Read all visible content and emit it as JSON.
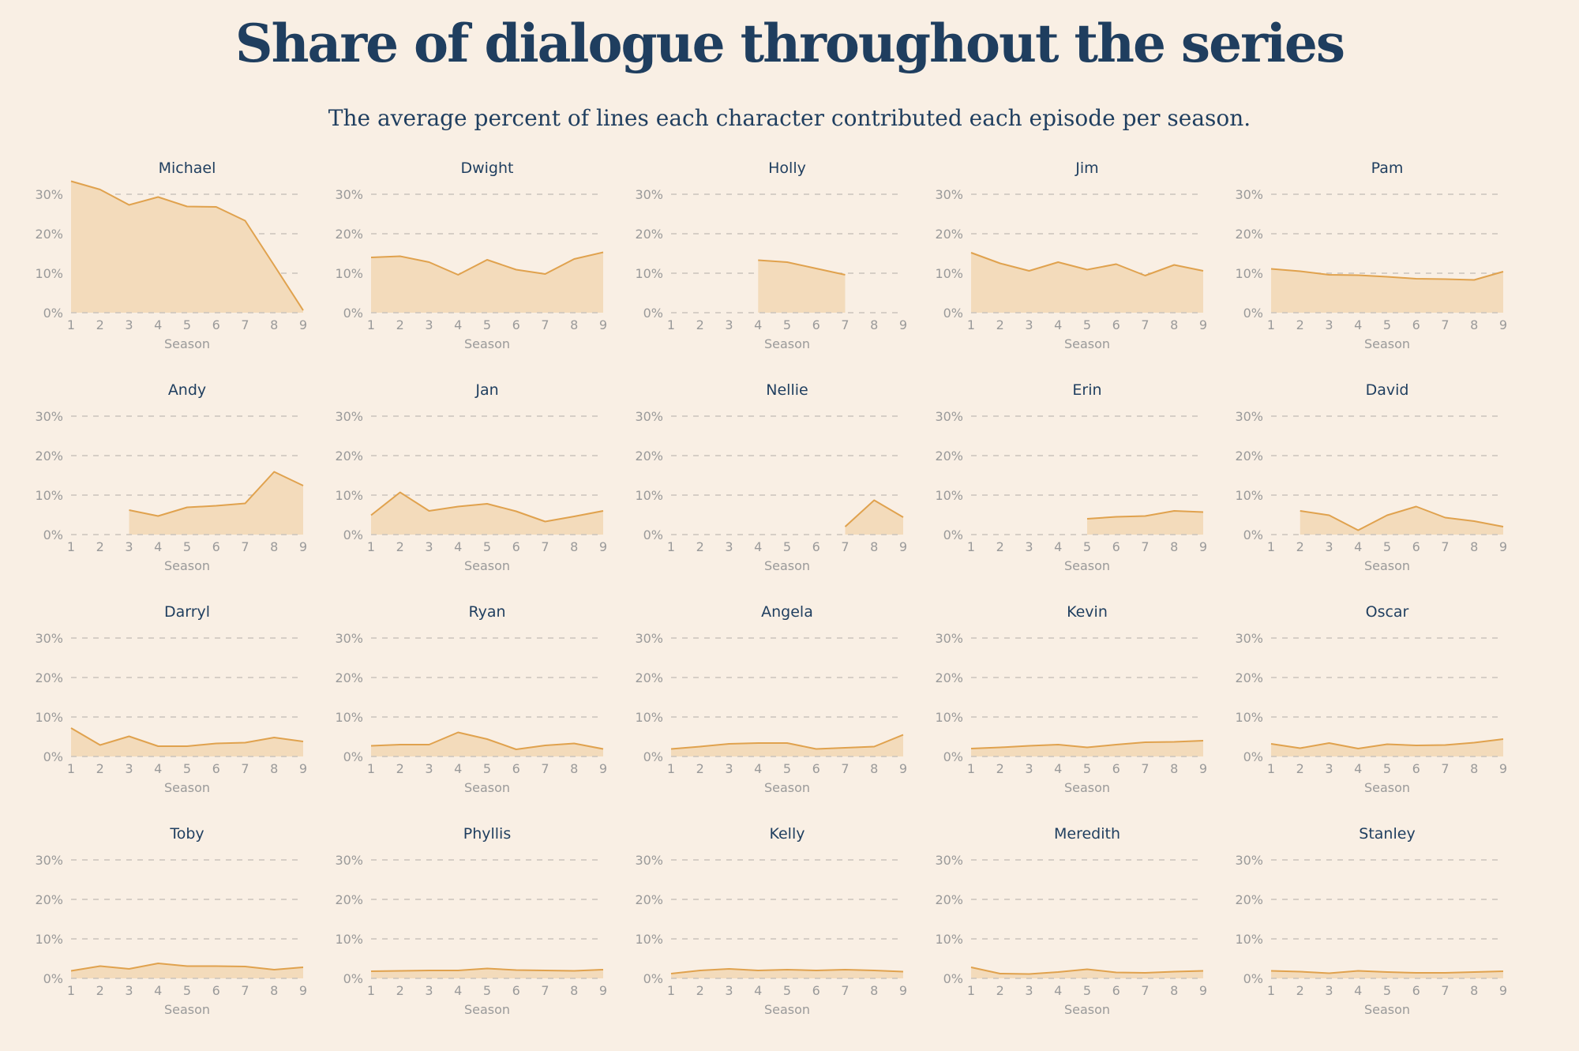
{
  "title": "Share of dialogue throughout the series",
  "subtitle": "The average percent of lines each character contributed each episode per season.",
  "colors": {
    "background": "#f9efe4",
    "area_fill": "#f3dbbb",
    "line": "#e0a24e",
    "grid": "#cbc4bc",
    "axis_text": "#9a9a9a",
    "title_text": "#1f3e5f"
  },
  "chart_data": {
    "type": "area",
    "layout": "small-multiples grid, 5 columns x 4 rows",
    "x": [
      1,
      2,
      3,
      4,
      5,
      6,
      7,
      8,
      9
    ],
    "x_tick_labels": [
      "1",
      "2",
      "3",
      "4",
      "5",
      "6",
      "7",
      "8",
      "9"
    ],
    "y_ticks": [
      0,
      10,
      20,
      30
    ],
    "y_tick_labels": [
      "0%",
      "10%",
      "20%",
      "30%"
    ],
    "xlabel": "Season",
    "ylim": [
      0,
      30
    ],
    "grid": "horizontal dashed",
    "series": [
      {
        "name": "Michael",
        "values": [
          33.3,
          31.2,
          27.3,
          29.3,
          26.9,
          26.8,
          23.3,
          12.0,
          0.6
        ]
      },
      {
        "name": "Dwight",
        "values": [
          14.0,
          14.3,
          12.8,
          9.6,
          13.4,
          10.9,
          9.8,
          13.6,
          15.3
        ]
      },
      {
        "name": "Holly",
        "values": [
          null,
          null,
          null,
          13.3,
          12.8,
          11.2,
          9.6,
          null,
          null
        ]
      },
      {
        "name": "Jim",
        "values": [
          15.2,
          12.5,
          10.6,
          12.8,
          10.9,
          12.3,
          9.4,
          12.1,
          10.6
        ]
      },
      {
        "name": "Pam",
        "values": [
          11.1,
          10.5,
          9.6,
          9.5,
          9.1,
          8.6,
          8.5,
          8.3,
          10.4
        ]
      },
      {
        "name": "Andy",
        "values": [
          null,
          null,
          6.2,
          4.7,
          6.9,
          7.3,
          7.9,
          15.9,
          12.4
        ]
      },
      {
        "name": "Jan",
        "values": [
          4.9,
          10.7,
          6.0,
          7.1,
          7.8,
          5.9,
          3.3,
          4.6,
          6.0
        ]
      },
      {
        "name": "Nellie",
        "values": [
          null,
          null,
          null,
          null,
          null,
          null,
          2.0,
          8.7,
          4.4
        ]
      },
      {
        "name": "Erin",
        "values": [
          null,
          null,
          null,
          null,
          4.0,
          4.5,
          4.7,
          6.0,
          5.7
        ]
      },
      {
        "name": "David",
        "values": [
          null,
          6.0,
          4.9,
          1.1,
          4.9,
          7.1,
          4.3,
          3.4,
          2.0
        ]
      },
      {
        "name": "Darryl",
        "values": [
          7.2,
          2.9,
          5.1,
          2.6,
          2.6,
          3.3,
          3.5,
          4.8,
          3.8
        ]
      },
      {
        "name": "Ryan",
        "values": [
          2.7,
          3.0,
          3.0,
          6.1,
          4.4,
          1.8,
          2.8,
          3.3,
          1.9
        ]
      },
      {
        "name": "Angela",
        "values": [
          1.9,
          2.5,
          3.2,
          3.4,
          3.4,
          1.9,
          2.2,
          2.5,
          5.5
        ]
      },
      {
        "name": "Kevin",
        "values": [
          2.0,
          2.3,
          2.7,
          3.0,
          2.3,
          3.0,
          3.6,
          3.7,
          4.0
        ]
      },
      {
        "name": "Oscar",
        "values": [
          3.2,
          2.1,
          3.4,
          2.0,
          3.1,
          2.8,
          2.9,
          3.5,
          4.4
        ]
      },
      {
        "name": "Toby",
        "values": [
          1.9,
          3.1,
          2.4,
          3.8,
          3.1,
          3.1,
          3.0,
          2.2,
          2.8
        ]
      },
      {
        "name": "Phyllis",
        "values": [
          1.8,
          1.9,
          2.0,
          2.0,
          2.5,
          2.1,
          2.0,
          1.9,
          2.2
        ]
      },
      {
        "name": "Kelly",
        "values": [
          1.2,
          2.0,
          2.4,
          2.0,
          2.2,
          2.0,
          2.2,
          2.0,
          1.7
        ]
      },
      {
        "name": "Meredith",
        "values": [
          2.8,
          1.2,
          1.1,
          1.6,
          2.3,
          1.5,
          1.4,
          1.7,
          1.9
        ]
      },
      {
        "name": "Stanley",
        "values": [
          1.9,
          1.7,
          1.3,
          1.9,
          1.6,
          1.4,
          1.4,
          1.6,
          1.8
        ]
      }
    ]
  }
}
